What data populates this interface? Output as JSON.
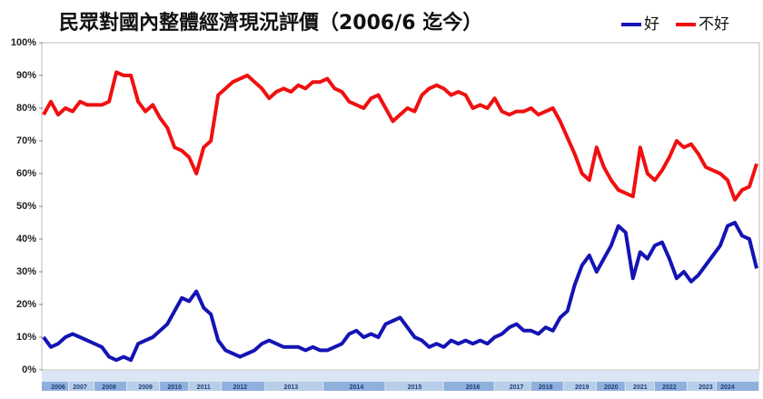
{
  "chart_data": {
    "type": "line",
    "title": "民眾對國內整體經濟現況評價（2006/6 迄今）",
    "categories": [
      null,
      null,
      "2006",
      null,
      null,
      "2007",
      null,
      null,
      null,
      "2008",
      null,
      null,
      null,
      null,
      "2009",
      null,
      null,
      null,
      "2010",
      null,
      null,
      null,
      "2011",
      null,
      null,
      null,
      null,
      "2012",
      null,
      null,
      null,
      null,
      null,
      null,
      "2013",
      null,
      null,
      null,
      null,
      null,
      null,
      null,
      null,
      "2014",
      null,
      null,
      null,
      null,
      null,
      null,
      null,
      "2015",
      null,
      null,
      null,
      null,
      null,
      null,
      null,
      "2016",
      null,
      null,
      null,
      null,
      null,
      "2017",
      null,
      null,
      null,
      "2018",
      null,
      null,
      null,
      null,
      "2019",
      null,
      null,
      null,
      "2020",
      null,
      null,
      null,
      "2021",
      null,
      null,
      null,
      "2022",
      null,
      null,
      null,
      null,
      "2023",
      null,
      null,
      "2024",
      null,
      null,
      null,
      null
    ],
    "series": [
      {
        "name": "好",
        "color": "#1414b4",
        "values": [
          10,
          7,
          8,
          10,
          11,
          10,
          9,
          8,
          7,
          4,
          3,
          4,
          3,
          8,
          9,
          10,
          12,
          14,
          18,
          22,
          21,
          24,
          19,
          17,
          9,
          6,
          5,
          4,
          5,
          6,
          8,
          9,
          8,
          7,
          7,
          7,
          6,
          7,
          6,
          6,
          7,
          8,
          11,
          12,
          10,
          11,
          10,
          14,
          15,
          16,
          13,
          10,
          9,
          7,
          8,
          7,
          9,
          8,
          9,
          8,
          9,
          8,
          10,
          11,
          13,
          14,
          12,
          12,
          11,
          13,
          12,
          16,
          18,
          26,
          32,
          35,
          30,
          34,
          38,
          44,
          42,
          28,
          36,
          34,
          38,
          39,
          34,
          28,
          30,
          27,
          29,
          32,
          35,
          38,
          44,
          45,
          41,
          40,
          31
        ]
      },
      {
        "name": "不好",
        "color": "#f01010",
        "values": [
          78,
          82,
          78,
          80,
          79,
          82,
          81,
          81,
          81,
          82,
          91,
          90,
          90,
          82,
          79,
          81,
          77,
          74,
          68,
          67,
          65,
          60,
          68,
          70,
          84,
          86,
          88,
          89,
          90,
          88,
          86,
          83,
          85,
          86,
          85,
          87,
          86,
          88,
          88,
          89,
          86,
          85,
          82,
          81,
          80,
          83,
          84,
          80,
          76,
          78,
          80,
          79,
          84,
          86,
          87,
          86,
          84,
          85,
          84,
          80,
          81,
          80,
          83,
          79,
          78,
          79,
          79,
          80,
          78,
          79,
          80,
          76,
          71,
          66,
          60,
          58,
          68,
          62,
          58,
          55,
          54,
          53,
          68,
          60,
          58,
          61,
          65,
          70,
          68,
          69,
          66,
          62,
          61,
          60,
          58,
          52,
          55,
          56,
          63
        ]
      }
    ],
    "ylim": [
      0,
      100
    ],
    "yticks": [
      {
        "value": 0,
        "label": "0%"
      },
      {
        "value": 10,
        "label": "10%"
      },
      {
        "value": 20,
        "label": "20%"
      },
      {
        "value": 30,
        "label": "30%"
      },
      {
        "value": 40,
        "label": "40%"
      },
      {
        "value": 50,
        "label": "50%"
      },
      {
        "value": 60,
        "label": "60%"
      },
      {
        "value": 70,
        "label": "70%"
      },
      {
        "value": 80,
        "label": "80%"
      },
      {
        "value": 90,
        "label": "90%"
      },
      {
        "value": 100,
        "label": "100%"
      }
    ]
  }
}
